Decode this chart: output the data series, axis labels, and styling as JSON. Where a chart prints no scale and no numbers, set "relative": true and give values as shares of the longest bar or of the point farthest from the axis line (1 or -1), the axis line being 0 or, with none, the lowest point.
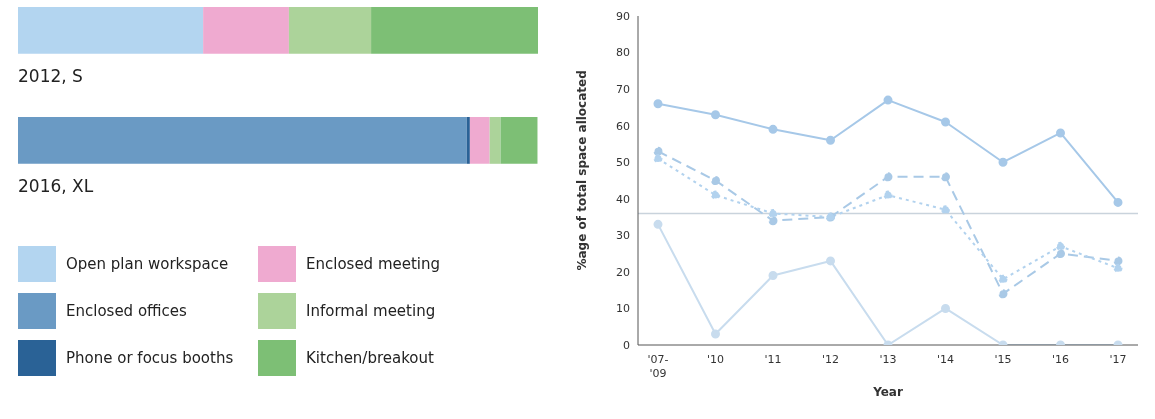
{
  "chart_data": [
    {
      "type": "bar",
      "orientation": "horizontal",
      "stacked": true,
      "relative": true,
      "categories": [
        "2012, S",
        "2016, XL"
      ],
      "legend": "bottom",
      "series": [
        {
          "name": "Open plan workspace",
          "color": "#b3d5f0",
          "values": [
            0.356,
            0
          ]
        },
        {
          "name": "Enclosed offices",
          "color": "#6a9ac4",
          "values": [
            0,
            0.863
          ]
        },
        {
          "name": "Phone or focus booths",
          "color": "#2a6296",
          "values": [
            0,
            0.006
          ]
        },
        {
          "name": "Enclosed meeting",
          "color": "#efaad0",
          "values": [
            0.165,
            0.038
          ]
        },
        {
          "name": "Informal meeting",
          "color": "#acd39a",
          "values": [
            0.158,
            0.021
          ]
        },
        {
          "name": "Kitchen/breakout",
          "color": "#7dbf75",
          "values": [
            0.321,
            0.071
          ]
        }
      ]
    },
    {
      "type": "line",
      "categories": [
        "'07-'09",
        "'10",
        "'11",
        "'12",
        "'13",
        "'14",
        "'15",
        "'16",
        "'17"
      ],
      "xlabel": "Year",
      "ylabel": "%age of total space allocated",
      "ylim": [
        0,
        90
      ],
      "yticks": [
        0,
        10,
        20,
        30,
        40,
        50,
        60,
        70,
        80,
        90
      ],
      "marker": "circle",
      "ref_lines": [
        {
          "axis": "y",
          "value": 36,
          "color": "#c9d3dc"
        }
      ],
      "series": [
        {
          "color": "#a6c8e8",
          "line_style": "solid",
          "values": [
            66,
            63,
            59,
            56,
            67,
            61,
            50,
            58,
            39
          ]
        },
        {
          "color": "#a9c9e6",
          "line_style": "dashed",
          "values": [
            53,
            45,
            34,
            35,
            46,
            46,
            14,
            25,
            23
          ]
        },
        {
          "color": "#b2d2ee",
          "line_style": "dotted",
          "values": [
            51,
            41,
            36,
            35,
            41,
            37,
            18,
            27,
            21
          ]
        },
        {
          "color": "#c8dcee",
          "line_style": "solid",
          "values": [
            33,
            3,
            19,
            23,
            0,
            10,
            0,
            0,
            0
          ]
        }
      ]
    }
  ]
}
